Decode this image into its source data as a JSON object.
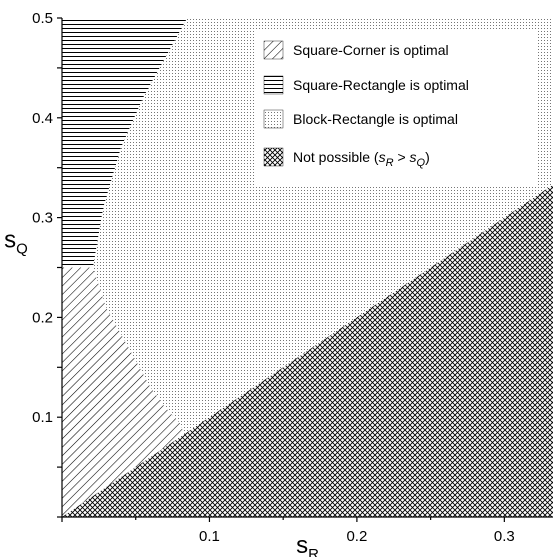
{
  "chart_data": {
    "type": "area",
    "title": "",
    "xlabel": {
      "main": "s",
      "sub": "R"
    },
    "ylabel": {
      "main": "s",
      "sub": "Q"
    },
    "xlim": [
      0,
      0.333
    ],
    "ylim": [
      0,
      0.5
    ],
    "x_ticks": [
      "0.1",
      "0.2",
      "0.3"
    ],
    "x_tick_values": [
      0.1,
      0.2,
      0.3
    ],
    "y_ticks": [
      "0.1",
      "0.2",
      "0.3",
      "0.4",
      "0.5"
    ],
    "y_tick_values": [
      0.1,
      0.2,
      0.3,
      0.4,
      0.5
    ],
    "legend_position": "top-right",
    "regions": [
      {
        "name": "Square-Corner is optimal",
        "pattern": "diagonal-hatch",
        "polygon": [
          [
            0,
            0
          ],
          [
            0,
            0.25
          ],
          [
            0.021,
            0.25
          ],
          [
            0.03,
            0.21
          ],
          [
            0.045,
            0.17
          ],
          [
            0.06,
            0.13
          ],
          [
            0.07,
            0.11
          ],
          [
            0.08,
            0.094
          ],
          [
            0.083,
            0.083
          ],
          [
            0,
            0
          ]
        ]
      },
      {
        "name": "Square-Rectangle is optimal",
        "pattern": "horizontal-lines",
        "polygon": [
          [
            0,
            0.25
          ],
          [
            0.021,
            0.25
          ],
          [
            0.028,
            0.31
          ],
          [
            0.04,
            0.37
          ],
          [
            0.055,
            0.42
          ],
          [
            0.07,
            0.46
          ],
          [
            0.085,
            0.5
          ],
          [
            0,
            0.5
          ]
        ]
      },
      {
        "name": "Block-Rectangle is optimal",
        "pattern": "dots",
        "polygon": [
          [
            0.021,
            0.25
          ],
          [
            0.028,
            0.31
          ],
          [
            0.04,
            0.37
          ],
          [
            0.055,
            0.42
          ],
          [
            0.07,
            0.46
          ],
          [
            0.085,
            0.5
          ],
          [
            0.333,
            0.5
          ],
          [
            0.333,
            0.333
          ],
          [
            0.083,
            0.083
          ],
          [
            0.08,
            0.094
          ],
          [
            0.07,
            0.11
          ],
          [
            0.06,
            0.13
          ],
          [
            0.045,
            0.17
          ],
          [
            0.03,
            0.21
          ]
        ]
      },
      {
        "name": "Not possible",
        "pattern": "crosshatch",
        "polygon": [
          [
            0,
            0
          ],
          [
            0.333,
            0.333
          ],
          [
            0.333,
            0
          ]
        ]
      }
    ],
    "legend": [
      {
        "label": "Square-Corner is optimal",
        "pattern": "diagonal-hatch"
      },
      {
        "label": "Square-Rectangle is optimal",
        "pattern": "horizontal-lines"
      },
      {
        "label": "Block-Rectangle is optimal",
        "pattern": "dots"
      },
      {
        "label": "Not possible",
        "pattern": "crosshatch",
        "condition": {
          "open": "(",
          "a": "s",
          "a_sub": "R",
          "op": " > ",
          "b": "s",
          "b_sub": "Q",
          "close": ")"
        }
      }
    ]
  }
}
